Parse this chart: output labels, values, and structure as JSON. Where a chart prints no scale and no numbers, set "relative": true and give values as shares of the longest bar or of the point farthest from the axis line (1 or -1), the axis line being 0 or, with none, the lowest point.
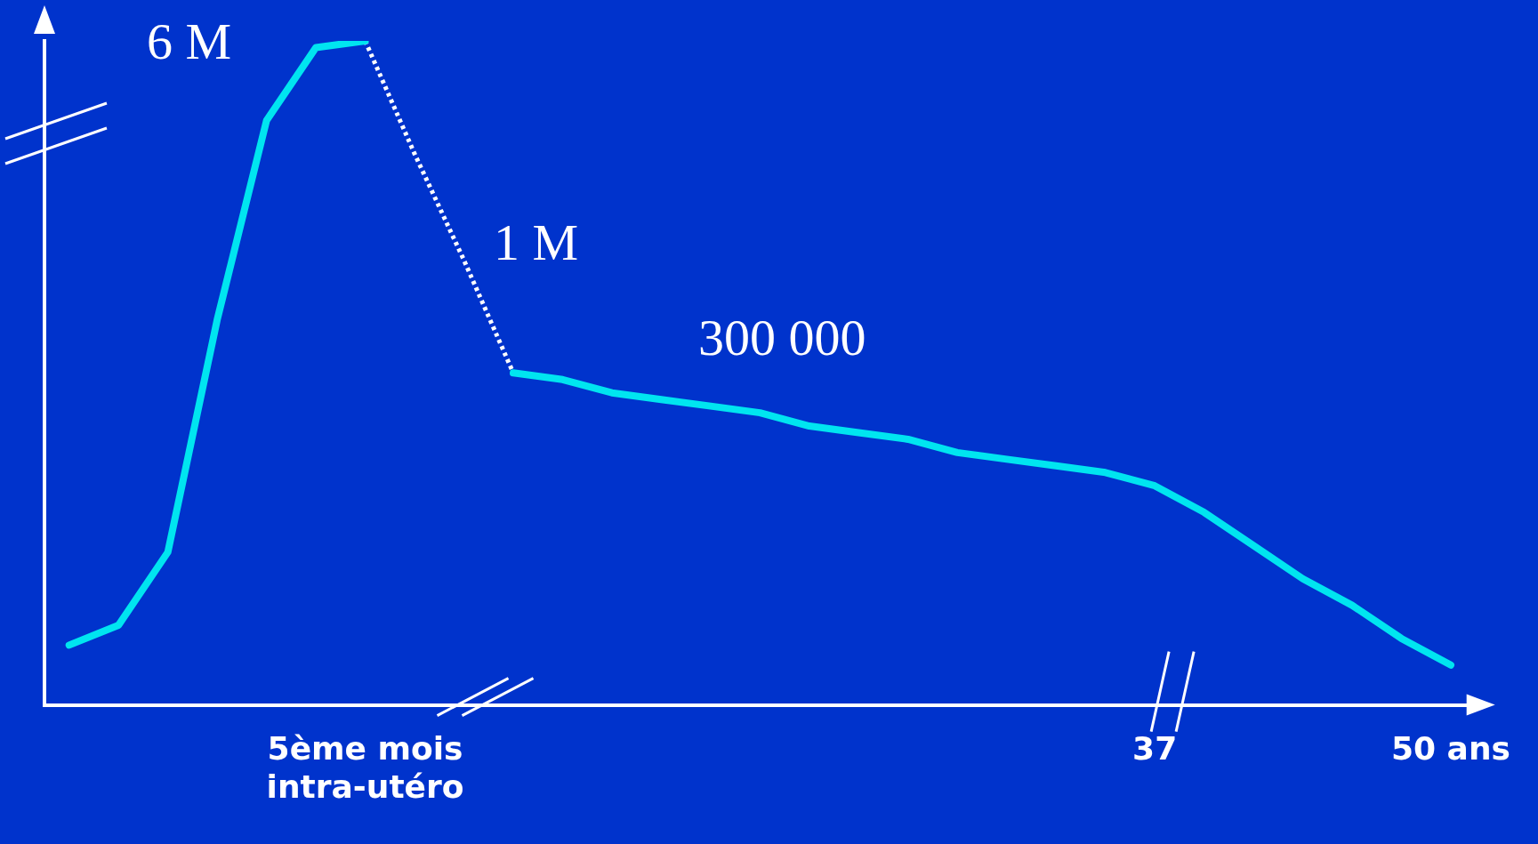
{
  "chart_data": {
    "type": "line",
    "relative": true,
    "grid": false,
    "legend": false,
    "tick_labels": "x",
    "marker": "none",
    "categories": [
      null,
      null,
      null,
      null,
      null,
      null,
      "5ème mois intra-utéro",
      null,
      null,
      null,
      null,
      null,
      null,
      null,
      null,
      null,
      null,
      null,
      null,
      null,
      null,
      null,
      "37",
      null,
      null,
      null,
      null,
      null,
      "50 ans"
    ],
    "series": [
      {
        "color": "#00e5f0",
        "line_style": "solid",
        "values": [
          0.09,
          0.12,
          0.23,
          0.58,
          0.88,
          0.99,
          1.0,
          null,
          null,
          0.5,
          0.49,
          0.47,
          0.46,
          0.45,
          0.44,
          0.42,
          0.41,
          0.4,
          0.38,
          0.37,
          0.36,
          0.35,
          0.33,
          0.29,
          0.24,
          0.19,
          0.15,
          0.1,
          0.06
        ]
      },
      {
        "color": "#ffffff",
        "line_style": "dotted",
        "values": [
          null,
          null,
          null,
          null,
          null,
          null,
          1.0,
          0.83,
          0.67,
          0.5,
          null,
          null,
          null,
          null,
          null,
          null,
          null,
          null,
          null,
          null,
          null,
          null,
          null,
          null,
          null,
          null,
          null,
          null,
          null
        ]
      }
    ],
    "annotations": [
      "6 M",
      "1 M",
      "300 000"
    ]
  }
}
